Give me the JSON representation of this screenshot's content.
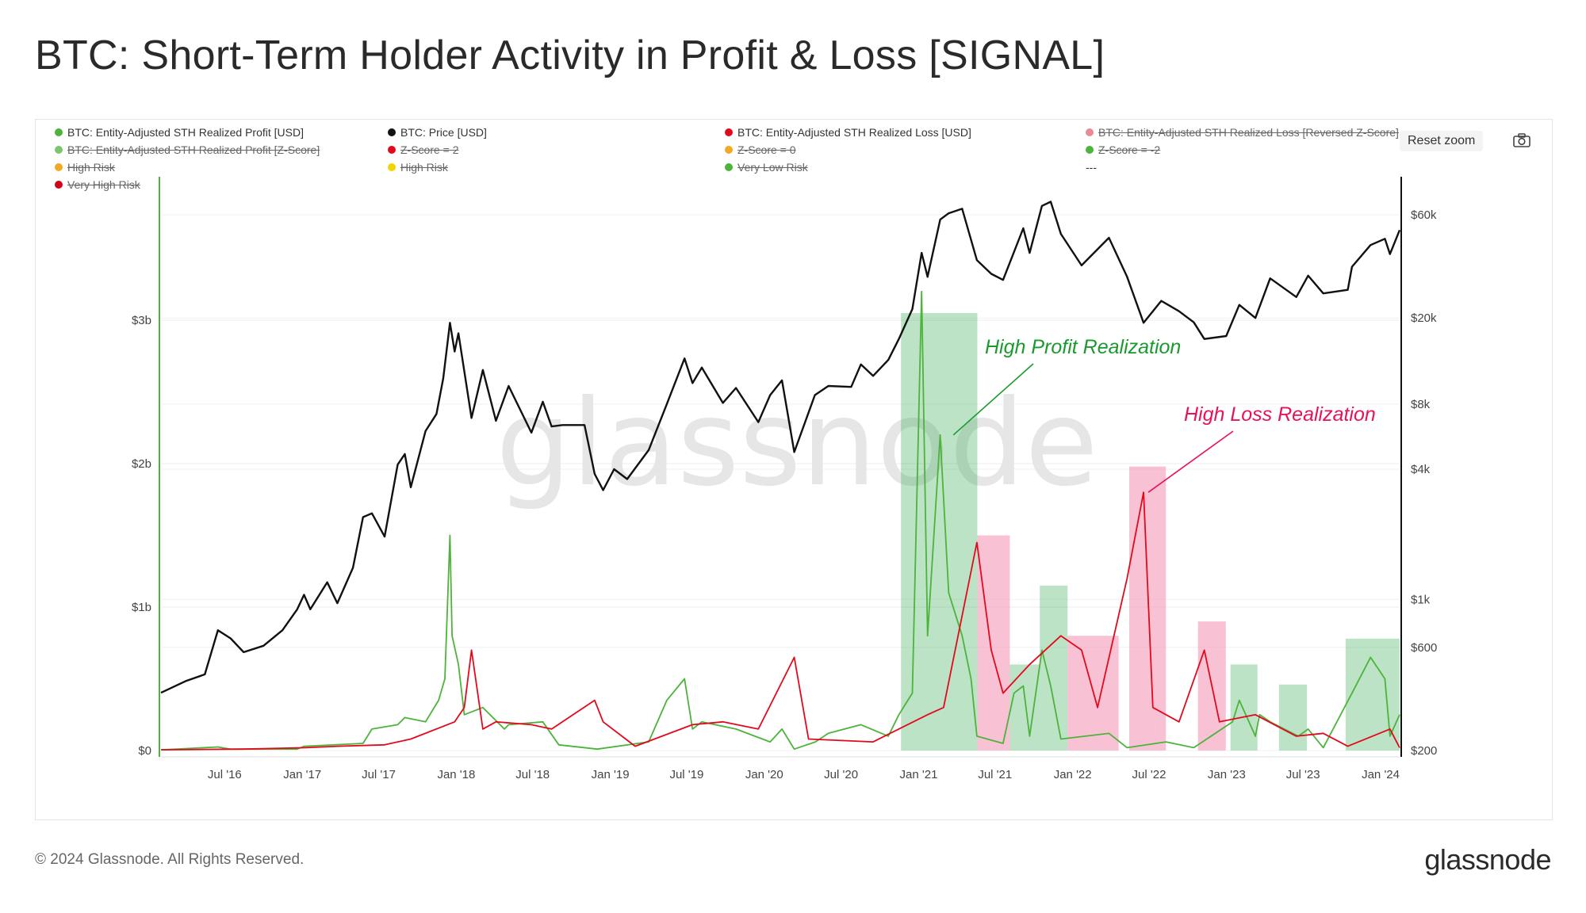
{
  "title": "BTC: Short-Term Holder Activity in Profit & Loss [SIGNAL]",
  "toolbar": {
    "reset_zoom": "Reset zoom",
    "camera_icon": "camera-icon"
  },
  "footer": {
    "copyright": "© 2024 Glassnode. All Rights Reserved.",
    "logo": "glassnode"
  },
  "colors": {
    "profit": "#4cb33b",
    "loss": "#e3091d",
    "price": "#111111",
    "profit_zone": "#2fa84f",
    "loss_zone": "#f48fb1",
    "annotation_profit": "#1a9a2e",
    "annotation_loss": "#e8115a"
  },
  "legend": [
    {
      "label": "BTC: Entity-Adjusted STH Realized Profit [USD]",
      "color": "#4cb33b",
      "off": false
    },
    {
      "label": "BTC: Price [USD]",
      "color": "#111111",
      "off": false
    },
    {
      "label": "BTC: Entity-Adjusted STH Realized Loss [USD]",
      "color": "#e3091d",
      "off": false
    },
    {
      "label": "BTC: Entity-Adjusted STH Realized Loss [Reversed Z-Score]",
      "color": "#e88b95",
      "off": true
    },
    {
      "label": "BTC: Entity-Adjusted STH Realized Profit [Z-Score]",
      "color": "#7cc46f",
      "off": true
    },
    {
      "label": "Z-Score = 2",
      "color": "#e3091d",
      "off": true
    },
    {
      "label": "Z-Score = 0",
      "color": "#f5a623",
      "off": true
    },
    {
      "label": "Z-Score = -2",
      "color": "#4cb33b",
      "off": true
    },
    {
      "label": "High Risk",
      "color": "#f5a623",
      "off": true
    },
    {
      "label": "High Risk",
      "color": "#f2d500",
      "off": true
    },
    {
      "label": "Very Low Risk",
      "color": "#4cb33b",
      "off": true
    },
    {
      "label": "---",
      "color": "",
      "off": false
    },
    {
      "label": "Very High Risk",
      "color": "#d0021b",
      "off": true
    }
  ],
  "chart_data": {
    "type": "line",
    "title": "BTC: Short-Term Holder Activity in Profit & Loss [SIGNAL]",
    "watermark": "glassnode",
    "x_range": [
      "2016-02-01",
      "2024-02-15"
    ],
    "x_tick_labels": [
      "Jul '16",
      "Jan '17",
      "Jul '17",
      "Jan '18",
      "Jul '18",
      "Jan '19",
      "Jul '19",
      "Jan '20",
      "Jul '20",
      "Jan '21",
      "Jul '21",
      "Jan '22",
      "Jul '22",
      "Jan '23",
      "Jul '23",
      "Jan '24"
    ],
    "x_tick_dates": [
      "2016-07-01",
      "2017-01-01",
      "2017-07-01",
      "2018-01-01",
      "2018-07-01",
      "2019-01-01",
      "2019-07-01",
      "2020-01-01",
      "2020-07-01",
      "2021-01-01",
      "2021-07-01",
      "2022-01-01",
      "2022-07-01",
      "2023-01-01",
      "2023-07-01",
      "2024-01-01"
    ],
    "y_left": {
      "scale": "linear",
      "min": 0,
      "max": 4000000000,
      "ticks": [
        0,
        1000000000,
        2000000000,
        3000000000
      ],
      "tick_labels": [
        "$0",
        "$1b",
        "$2b",
        "$3b"
      ]
    },
    "y_right": {
      "scale": "log",
      "min": 200,
      "max": 90000,
      "ticks": [
        200,
        600,
        1000,
        4000,
        8000,
        20000,
        60000
      ],
      "tick_labels": [
        "$200",
        "$600",
        "$1k",
        "$4k",
        "$8k",
        "$20k",
        "$60k"
      ]
    },
    "series": [
      {
        "name": "BTC: Price [USD]",
        "axis": "right",
        "color": "#111111",
        "points": [
          [
            "2016-02-01",
            370
          ],
          [
            "2016-04-01",
            420
          ],
          [
            "2016-05-15",
            450
          ],
          [
            "2016-06-15",
            720
          ],
          [
            "2016-07-15",
            660
          ],
          [
            "2016-08-15",
            570
          ],
          [
            "2016-10-01",
            610
          ],
          [
            "2016-11-15",
            720
          ],
          [
            "2016-12-20",
            900
          ],
          [
            "2017-01-05",
            1050
          ],
          [
            "2017-01-20",
            900
          ],
          [
            "2017-03-01",
            1200
          ],
          [
            "2017-03-25",
            960
          ],
          [
            "2017-05-01",
            1400
          ],
          [
            "2017-05-25",
            2400
          ],
          [
            "2017-06-15",
            2500
          ],
          [
            "2017-07-15",
            1950
          ],
          [
            "2017-08-15",
            4200
          ],
          [
            "2017-09-01",
            4700
          ],
          [
            "2017-09-15",
            3300
          ],
          [
            "2017-10-20",
            6000
          ],
          [
            "2017-11-15",
            7200
          ],
          [
            "2017-12-01",
            10500
          ],
          [
            "2017-12-17",
            19000
          ],
          [
            "2017-12-28",
            14000
          ],
          [
            "2018-01-06",
            17000
          ],
          [
            "2018-02-06",
            6900
          ],
          [
            "2018-03-05",
            11500
          ],
          [
            "2018-04-05",
            6700
          ],
          [
            "2018-05-05",
            9700
          ],
          [
            "2018-06-28",
            5900
          ],
          [
            "2018-07-25",
            8200
          ],
          [
            "2018-08-15",
            6300
          ],
          [
            "2018-09-10",
            6400
          ],
          [
            "2018-11-01",
            6400
          ],
          [
            "2018-11-25",
            3800
          ],
          [
            "2018-12-15",
            3200
          ],
          [
            "2019-01-10",
            4000
          ],
          [
            "2019-02-10",
            3600
          ],
          [
            "2019-04-02",
            4900
          ],
          [
            "2019-05-15",
            8000
          ],
          [
            "2019-06-26",
            13000
          ],
          [
            "2019-07-15",
            10000
          ],
          [
            "2019-08-06",
            11800
          ],
          [
            "2019-09-25",
            8100
          ],
          [
            "2019-10-26",
            9500
          ],
          [
            "2019-12-18",
            6600
          ],
          [
            "2020-01-15",
            8800
          ],
          [
            "2020-02-12",
            10300
          ],
          [
            "2020-03-12",
            4800
          ],
          [
            "2020-04-30",
            8800
          ],
          [
            "2020-06-01",
            9700
          ],
          [
            "2020-07-25",
            9600
          ],
          [
            "2020-08-17",
            12200
          ],
          [
            "2020-09-15",
            10800
          ],
          [
            "2020-10-21",
            12800
          ],
          [
            "2020-11-15",
            16000
          ],
          [
            "2020-12-17",
            22000
          ],
          [
            "2021-01-08",
            40000
          ],
          [
            "2021-01-22",
            31000
          ],
          [
            "2021-02-21",
            57000
          ],
          [
            "2021-03-13",
            61000
          ],
          [
            "2021-04-14",
            64000
          ],
          [
            "2021-05-19",
            37000
          ],
          [
            "2021-06-22",
            32000
          ],
          [
            "2021-07-20",
            30000
          ],
          [
            "2021-09-06",
            52000
          ],
          [
            "2021-09-21",
            40000
          ],
          [
            "2021-10-20",
            66000
          ],
          [
            "2021-11-10",
            69000
          ],
          [
            "2021-12-04",
            49000
          ],
          [
            "2022-01-22",
            35000
          ],
          [
            "2022-03-28",
            47000
          ],
          [
            "2022-05-10",
            31000
          ],
          [
            "2022-06-18",
            19000
          ],
          [
            "2022-07-30",
            24000
          ],
          [
            "2022-09-10",
            21500
          ],
          [
            "2022-10-15",
            19100
          ],
          [
            "2022-11-09",
            16000
          ],
          [
            "2022-12-31",
            16500
          ],
          [
            "2023-01-31",
            23000
          ],
          [
            "2023-03-10",
            20000
          ],
          [
            "2023-04-14",
            30500
          ],
          [
            "2023-06-15",
            25000
          ],
          [
            "2023-07-13",
            31400
          ],
          [
            "2023-08-18",
            26000
          ],
          [
            "2023-10-15",
            27000
          ],
          [
            "2023-10-25",
            34500
          ],
          [
            "2023-12-08",
            43500
          ],
          [
            "2024-01-11",
            46500
          ],
          [
            "2024-01-23",
            39500
          ],
          [
            "2024-02-15",
            51000
          ]
        ]
      },
      {
        "name": "BTC: Entity-Adjusted STH Realized Profit [USD]",
        "axis": "left",
        "color": "#4cb33b",
        "points": [
          [
            "2016-02-01",
            5000000
          ],
          [
            "2016-06-15",
            25000000
          ],
          [
            "2016-07-15",
            10000000
          ],
          [
            "2016-12-20",
            10000000
          ],
          [
            "2017-01-05",
            30000000
          ],
          [
            "2017-05-25",
            50000000
          ],
          [
            "2017-06-15",
            150000000
          ],
          [
            "2017-08-15",
            180000000
          ],
          [
            "2017-09-01",
            230000000
          ],
          [
            "2017-10-20",
            200000000
          ],
          [
            "2017-11-20",
            350000000
          ],
          [
            "2017-12-05",
            500000000
          ],
          [
            "2017-12-17",
            1500000000
          ],
          [
            "2017-12-22",
            800000000
          ],
          [
            "2018-01-06",
            600000000
          ],
          [
            "2018-01-20",
            250000000
          ],
          [
            "2018-03-05",
            300000000
          ],
          [
            "2018-04-25",
            150000000
          ],
          [
            "2018-05-05",
            180000000
          ],
          [
            "2018-07-25",
            200000000
          ],
          [
            "2018-09-01",
            40000000
          ],
          [
            "2018-12-01",
            10000000
          ],
          [
            "2019-04-02",
            60000000
          ],
          [
            "2019-05-15",
            350000000
          ],
          [
            "2019-06-26",
            500000000
          ],
          [
            "2019-07-15",
            150000000
          ],
          [
            "2019-08-06",
            200000000
          ],
          [
            "2019-10-26",
            150000000
          ],
          [
            "2020-01-15",
            60000000
          ],
          [
            "2020-02-12",
            150000000
          ],
          [
            "2020-03-12",
            10000000
          ],
          [
            "2020-05-01",
            60000000
          ],
          [
            "2020-06-01",
            120000000
          ],
          [
            "2020-08-17",
            180000000
          ],
          [
            "2020-10-21",
            100000000
          ],
          [
            "2020-11-15",
            250000000
          ],
          [
            "2020-12-17",
            400000000
          ],
          [
            "2021-01-08",
            3200000000
          ],
          [
            "2021-01-22",
            800000000
          ],
          [
            "2021-02-21",
            2200000000
          ],
          [
            "2021-03-13",
            1100000000
          ],
          [
            "2021-04-14",
            800000000
          ],
          [
            "2021-05-05",
            500000000
          ],
          [
            "2021-05-19",
            100000000
          ],
          [
            "2021-07-20",
            50000000
          ],
          [
            "2021-08-15",
            400000000
          ],
          [
            "2021-09-06",
            450000000
          ],
          [
            "2021-09-21",
            100000000
          ],
          [
            "2021-10-20",
            700000000
          ],
          [
            "2021-11-10",
            450000000
          ],
          [
            "2021-12-04",
            80000000
          ],
          [
            "2022-03-28",
            120000000
          ],
          [
            "2022-05-10",
            20000000
          ],
          [
            "2022-08-10",
            60000000
          ],
          [
            "2022-10-15",
            20000000
          ],
          [
            "2023-01-15",
            200000000
          ],
          [
            "2023-01-31",
            350000000
          ],
          [
            "2023-03-10",
            100000000
          ],
          [
            "2023-03-20",
            250000000
          ],
          [
            "2023-04-14",
            200000000
          ],
          [
            "2023-06-20",
            100000000
          ],
          [
            "2023-07-13",
            150000000
          ],
          [
            "2023-08-18",
            20000000
          ],
          [
            "2023-10-25",
            400000000
          ],
          [
            "2023-12-08",
            650000000
          ],
          [
            "2024-01-11",
            500000000
          ],
          [
            "2024-01-23",
            100000000
          ],
          [
            "2024-02-15",
            250000000
          ]
        ]
      },
      {
        "name": "BTC: Entity-Adjusted STH Realized Loss [USD]",
        "axis": "left",
        "color": "#e3091d",
        "points": [
          [
            "2016-02-01",
            5000000
          ],
          [
            "2016-08-15",
            10000000
          ],
          [
            "2017-01-10",
            20000000
          ],
          [
            "2017-03-25",
            30000000
          ],
          [
            "2017-07-15",
            40000000
          ],
          [
            "2017-09-15",
            80000000
          ],
          [
            "2017-12-28",
            200000000
          ],
          [
            "2018-01-20",
            300000000
          ],
          [
            "2018-02-06",
            700000000
          ],
          [
            "2018-03-05",
            150000000
          ],
          [
            "2018-04-05",
            200000000
          ],
          [
            "2018-06-28",
            180000000
          ],
          [
            "2018-08-15",
            150000000
          ],
          [
            "2018-11-25",
            350000000
          ],
          [
            "2018-12-15",
            200000000
          ],
          [
            "2019-03-01",
            30000000
          ],
          [
            "2019-07-15",
            180000000
          ],
          [
            "2019-09-25",
            200000000
          ],
          [
            "2019-12-18",
            150000000
          ],
          [
            "2020-03-12",
            650000000
          ],
          [
            "2020-04-15",
            80000000
          ],
          [
            "2020-09-15",
            60000000
          ],
          [
            "2021-01-22",
            250000000
          ],
          [
            "2021-03-01",
            300000000
          ],
          [
            "2021-05-19",
            1450000000
          ],
          [
            "2021-06-22",
            700000000
          ],
          [
            "2021-07-20",
            400000000
          ],
          [
            "2021-09-21",
            600000000
          ],
          [
            "2021-12-04",
            800000000
          ],
          [
            "2022-01-22",
            700000000
          ],
          [
            "2022-03-01",
            300000000
          ],
          [
            "2022-05-10",
            1200000000
          ],
          [
            "2022-06-18",
            1800000000
          ],
          [
            "2022-07-10",
            300000000
          ],
          [
            "2022-09-10",
            200000000
          ],
          [
            "2022-11-09",
            700000000
          ],
          [
            "2022-12-15",
            200000000
          ],
          [
            "2023-03-10",
            250000000
          ],
          [
            "2023-06-15",
            100000000
          ],
          [
            "2023-08-18",
            120000000
          ],
          [
            "2023-10-15",
            30000000
          ],
          [
            "2024-01-23",
            150000000
          ],
          [
            "2024-02-15",
            20000000
          ]
        ]
      }
    ],
    "zones": [
      {
        "type": "profit",
        "start": "2020-11-20",
        "end": "2021-05-20",
        "value": 3050000000
      },
      {
        "type": "loss",
        "start": "2021-05-20",
        "end": "2021-08-05",
        "value": 1500000000
      },
      {
        "type": "profit",
        "start": "2021-08-05",
        "end": "2021-10-15",
        "value": 600000000
      },
      {
        "type": "profit",
        "start": "2021-10-15",
        "end": "2021-12-20",
        "value": 1150000000
      },
      {
        "type": "loss",
        "start": "2021-12-20",
        "end": "2022-04-20",
        "value": 800000000
      },
      {
        "type": "loss",
        "start": "2022-05-15",
        "end": "2022-08-10",
        "value": 1980000000
      },
      {
        "type": "loss",
        "start": "2022-10-25",
        "end": "2022-12-30",
        "value": 900000000
      },
      {
        "type": "profit",
        "start": "2023-01-10",
        "end": "2023-03-15",
        "value": 600000000
      },
      {
        "type": "profit",
        "start": "2023-05-05",
        "end": "2023-07-10",
        "value": 460000000
      },
      {
        "type": "profit",
        "start": "2023-10-10",
        "end": "2024-02-15",
        "value": 780000000
      }
    ],
    "annotations": [
      {
        "text": "High Profit Realization",
        "color": "#1a9a2e",
        "arrow_to_date": "2021-03-13",
        "arrow_to_value": 2200000000
      },
      {
        "text": "High Loss Realization",
        "color": "#e8115a",
        "arrow_to_date": "2022-06-18",
        "arrow_to_value": 1800000000
      }
    ]
  }
}
